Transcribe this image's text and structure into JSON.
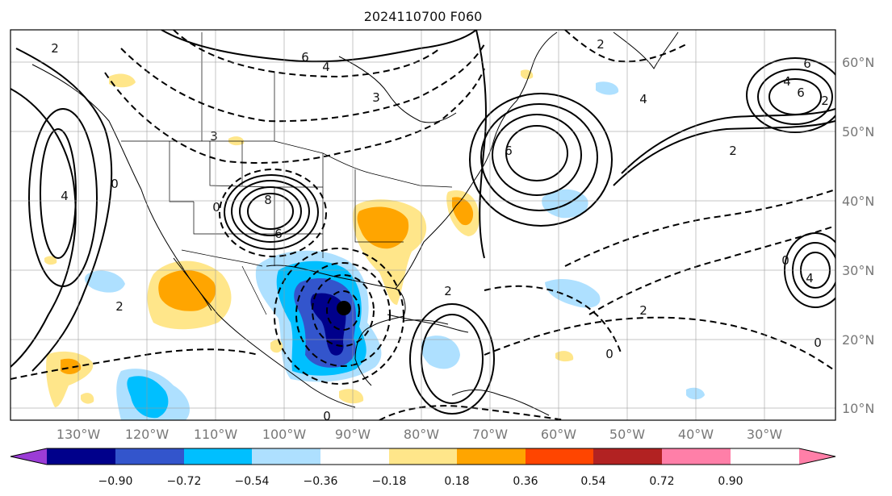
{
  "title": "2024110700 F060",
  "map": {
    "lon_ticks": [
      "130°W",
      "120°W",
      "110°W",
      "100°W",
      "90°W",
      "80°W",
      "70°W",
      "60°W",
      "50°W",
      "40°W",
      "30°W"
    ],
    "lat_ticks": [
      "60°N",
      "50°N",
      "40°N",
      "30°N",
      "20°N",
      "10°N"
    ],
    "grid": true
  },
  "colorbar": {
    "tick_labels": [
      "−0.90",
      "−0.72",
      "−0.54",
      "−0.36",
      "−0.18",
      "0.18",
      "0.36",
      "0.54",
      "0.72",
      "0.90"
    ],
    "colors": {
      "lt_-0.90": "#9b3cd6",
      "-0.90_-0.72": "#00008b",
      "-0.72_-0.54": "#3355cc",
      "-0.54_-0.36": "#00bfff",
      "-0.36_-0.18": "#aee0ff",
      "-0.18_0.18": "#ffffff",
      "0.18_0.36": "#ffe68a",
      "0.36_0.54": "#ffa500",
      "0.54_0.72": "#ff4500",
      "0.72_0.90": "#b22222",
      "gt_0.90": "#ff7fa8"
    }
  },
  "contour_labels": [
    "2",
    "6",
    "4",
    "2",
    "6",
    "4",
    "2",
    "6",
    "4",
    "3",
    "0",
    "0",
    "3",
    "6",
    "8",
    "6",
    "2",
    "4",
    "0",
    "2",
    "2",
    "2",
    "4",
    "0",
    "0",
    "0"
  ]
}
